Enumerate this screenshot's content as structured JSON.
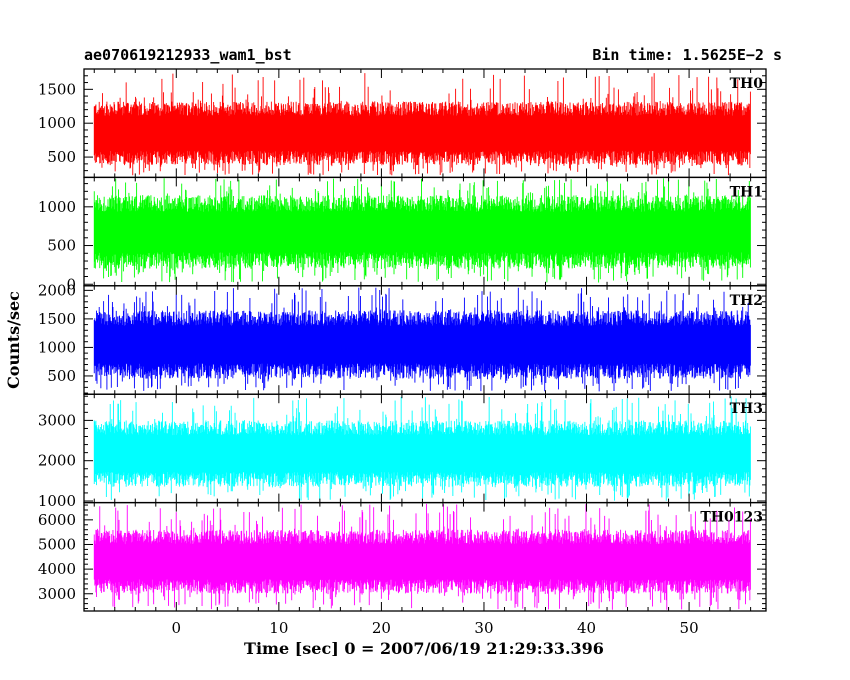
{
  "header": {
    "left_title": "ae070619212933_wam1_bst",
    "right_title": "Bin time: 1.5625E−2 s"
  },
  "chart_data": {
    "type": "line",
    "ylabel": "Counts/sec",
    "xlabel": "Time [sec] 0 = 2007/06/19 21:29:33.396",
    "xlim": [
      -9,
      57.5
    ],
    "x_range": [
      -8,
      56
    ],
    "bin_time": 0.015625,
    "x_ticks": [
      0,
      10,
      20,
      30,
      40,
      50
    ],
    "panels": [
      {
        "name": "TH0",
        "color": "#ff0000",
        "ylim": [
          200,
          1800
        ],
        "y_ticks": [
          500,
          1000,
          1500
        ],
        "y_min_data": 230,
        "y_max_data": 1750,
        "y_typical_low": 380,
        "y_typical_high": 1320
      },
      {
        "name": "TH1",
        "color": "#00ff00",
        "ylim": [
          -20,
          1380
        ],
        "y_ticks": [
          0,
          500,
          1000
        ],
        "y_min_data": 20,
        "y_max_data": 1370,
        "y_typical_low": 200,
        "y_typical_high": 1150
      },
      {
        "name": "TH2",
        "color": "#0000ff",
        "ylim": [
          180,
          2080
        ],
        "y_ticks": [
          500,
          1000,
          1500,
          2000
        ],
        "y_min_data": 230,
        "y_max_data": 2050,
        "y_typical_low": 450,
        "y_typical_high": 1650
      },
      {
        "name": "TH3",
        "color": "#00ffff",
        "ylim": [
          960,
          3650
        ],
        "y_ticks": [
          1000,
          2000,
          3000
        ],
        "y_min_data": 1000,
        "y_max_data": 3600,
        "y_typical_low": 1350,
        "y_typical_high": 3000
      },
      {
        "name": "TH0123",
        "color": "#ff00ff",
        "ylim": [
          2300,
          6700
        ],
        "y_ticks": [
          3000,
          4000,
          5000,
          6000
        ],
        "y_min_data": 2350,
        "y_max_data": 6650,
        "y_typical_low": 3000,
        "y_typical_high": 5600
      }
    ]
  }
}
